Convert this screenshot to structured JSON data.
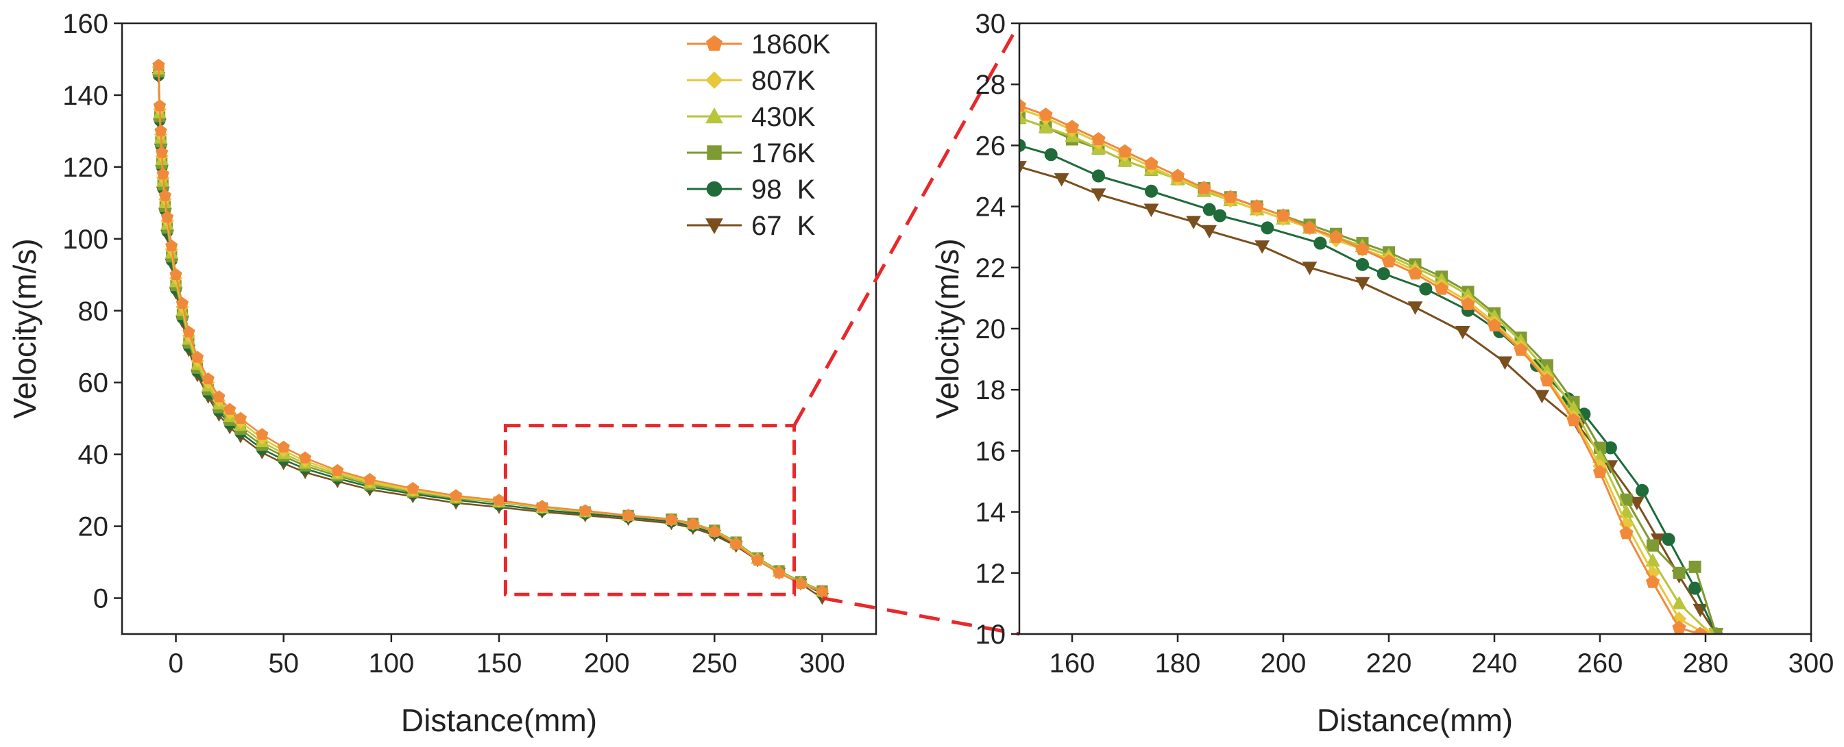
{
  "chart_data": [
    {
      "id": "full",
      "type": "line",
      "xlabel": "Distance(mm)",
      "ylabel": "Velocity(m/s)",
      "xlim": [
        -25,
        325
      ],
      "ylim": [
        -10,
        160
      ],
      "xticks": [
        0,
        50,
        100,
        150,
        200,
        250,
        300
      ],
      "yticks": [
        0,
        20,
        40,
        60,
        80,
        100,
        120,
        140,
        160
      ],
      "legend": {
        "placement": "top-right"
      },
      "zoom_box": {
        "x": [
          153,
          287
        ],
        "y": [
          1,
          48
        ]
      },
      "series": [
        {
          "name": "1860K",
          "color": "#f08a3a",
          "marker": "pentagon",
          "x": [
            -8,
            -7.5,
            -7,
            -6.5,
            -6,
            -5,
            -4,
            -2,
            0,
            3,
            6,
            10,
            15,
            20,
            25,
            30,
            40,
            50,
            60,
            75,
            90,
            110,
            130,
            150,
            170,
            190,
            210,
            230,
            240,
            250,
            260,
            270,
            280,
            290,
            300
          ],
          "y": [
            148.3,
            137,
            130,
            124,
            118,
            112,
            106,
            98,
            90,
            82,
            74,
            67,
            61,
            56,
            52.5,
            50,
            45.5,
            42,
            39,
            35.5,
            33,
            30.5,
            28.5,
            27.2,
            25.5,
            24.3,
            23,
            21.8,
            20.6,
            18.5,
            15,
            10.5,
            7,
            4,
            1.8
          ]
        },
        {
          "name": "807K",
          "color": "#e8c73a",
          "marker": "diamond",
          "x": [
            -8,
            -7.5,
            -7,
            -6.5,
            -6,
            -5,
            -4,
            -2,
            0,
            3,
            6,
            10,
            15,
            20,
            25,
            30,
            40,
            50,
            60,
            75,
            90,
            110,
            130,
            150,
            170,
            190,
            210,
            230,
            240,
            250,
            260,
            270,
            280,
            290,
            300
          ],
          "y": [
            147.8,
            136,
            129,
            123,
            117,
            111,
            105,
            97,
            89,
            81,
            73,
            66,
            60,
            55,
            51.5,
            49,
            44.5,
            41,
            38.2,
            35,
            32.5,
            30,
            28.2,
            27,
            25.3,
            24.2,
            22.9,
            21.8,
            20.6,
            18.6,
            15.2,
            10.8,
            7.2,
            4.2,
            1.8
          ]
        },
        {
          "name": "430K",
          "color": "#b8c43a",
          "marker": "triangle-up",
          "x": [
            -8,
            -7.5,
            -7,
            -6.5,
            -6,
            -5,
            -4,
            -2,
            0,
            3,
            6,
            10,
            15,
            20,
            25,
            30,
            40,
            50,
            60,
            75,
            90,
            110,
            130,
            150,
            170,
            190,
            210,
            230,
            240,
            250,
            260,
            270,
            280,
            290,
            300
          ],
          "y": [
            147.2,
            135,
            128,
            122,
            116,
            110,
            104,
            96,
            88,
            80,
            72,
            65,
            59,
            54,
            50.5,
            48,
            43.5,
            40.2,
            37.5,
            34.5,
            32,
            29.8,
            28,
            26.8,
            25.2,
            24.1,
            23,
            21.9,
            20.7,
            18.8,
            15.4,
            11,
            7.4,
            4.4,
            1.9
          ]
        },
        {
          "name": "176K",
          "color": "#7e9a32",
          "marker": "square",
          "x": [
            -8,
            -7.5,
            -7,
            -6.5,
            -6,
            -5,
            -4,
            -2,
            0,
            3,
            6,
            10,
            15,
            20,
            25,
            30,
            40,
            50,
            60,
            75,
            90,
            110,
            130,
            150,
            170,
            190,
            210,
            230,
            240,
            250,
            260,
            270,
            280,
            290,
            300
          ],
          "y": [
            146.5,
            134,
            127,
            121,
            115,
            109,
            103,
            95,
            87,
            79,
            71,
            64,
            58,
            53,
            49.5,
            47,
            42.5,
            39.5,
            36.8,
            34,
            31.5,
            29.5,
            27.8,
            26.7,
            25.1,
            24,
            23,
            22,
            20.8,
            18.9,
            15.6,
            11.2,
            7.6,
            4.6,
            2
          ]
        },
        {
          "name": "98  K",
          "color": "#1f6b3a",
          "marker": "circle",
          "x": [
            -8,
            -7.5,
            -7,
            -6.5,
            -6,
            -5,
            -4,
            -2,
            0,
            3,
            6,
            10,
            15,
            20,
            25,
            30,
            40,
            50,
            60,
            75,
            90,
            110,
            130,
            150,
            170,
            190,
            210,
            230,
            240,
            250,
            260,
            270,
            280,
            290,
            300
          ],
          "y": [
            145.5,
            133,
            126,
            120,
            114,
            108,
            102,
            94,
            86,
            78,
            70,
            63,
            57,
            52,
            48.5,
            46,
            41.5,
            38.5,
            36,
            33.3,
            31,
            29,
            27.3,
            26,
            24.5,
            23.5,
            22.5,
            21.3,
            20,
            18,
            15,
            11,
            7.4,
            4.4,
            1.2
          ]
        },
        {
          "name": "67  K",
          "color": "#7a4f1e",
          "marker": "triangle-down",
          "x": [
            -8,
            -7.5,
            -7,
            -6.5,
            -6,
            -5,
            -4,
            -2,
            0,
            3,
            6,
            10,
            15,
            20,
            25,
            30,
            40,
            50,
            60,
            75,
            90,
            110,
            130,
            150,
            170,
            190,
            210,
            230,
            240,
            250,
            260,
            270,
            280,
            290,
            300
          ],
          "y": [
            145,
            132,
            125,
            119,
            113,
            107,
            101,
            93,
            85,
            77,
            69,
            62,
            56,
            51,
            47.5,
            45,
            40.5,
            37.5,
            35,
            32.5,
            30.2,
            28.3,
            26.5,
            25.3,
            24,
            23,
            22,
            20.8,
            19.5,
            17.5,
            14.5,
            10.5,
            7,
            4,
            0
          ]
        }
      ]
    },
    {
      "id": "zoom",
      "type": "line",
      "xlabel": "Distance(mm)",
      "ylabel": "Velocity(m/s)",
      "xlim": [
        150,
        300
      ],
      "ylim": [
        10,
        30
      ],
      "xticks": [
        160,
        180,
        200,
        220,
        240,
        260,
        280,
        300
      ],
      "yticks": [
        10,
        12,
        14,
        16,
        18,
        20,
        22,
        24,
        26,
        28,
        30
      ],
      "series": [
        {
          "name": "1860K",
          "color": "#f08a3a",
          "marker": "pentagon",
          "x": [
            150,
            155,
            160,
            165,
            170,
            175,
            180,
            185,
            190,
            195,
            200,
            205,
            210,
            215,
            220,
            225,
            230,
            235,
            240,
            245,
            250,
            255,
            260,
            265,
            270,
            275,
            279
          ],
          "y": [
            27.3,
            27.0,
            26.6,
            26.2,
            25.8,
            25.4,
            25.0,
            24.6,
            24.3,
            24.0,
            23.7,
            23.3,
            23.0,
            22.6,
            22.2,
            21.8,
            21.3,
            20.8,
            20.1,
            19.3,
            18.3,
            17.0,
            15.3,
            13.3,
            11.7,
            10.2,
            10
          ]
        },
        {
          "name": "807K",
          "color": "#e8c73a",
          "marker": "diamond",
          "x": [
            150,
            155,
            160,
            165,
            170,
            175,
            180,
            185,
            190,
            195,
            200,
            205,
            210,
            215,
            220,
            225,
            230,
            235,
            240,
            245,
            250,
            255,
            260,
            265,
            270,
            275,
            280
          ],
          "y": [
            27.2,
            26.9,
            26.5,
            26.1,
            25.7,
            25.3,
            24.9,
            24.6,
            24.2,
            23.9,
            23.6,
            23.3,
            22.9,
            22.6,
            22.3,
            21.9,
            21.4,
            20.9,
            20.2,
            19.4,
            18.4,
            17.1,
            15.5,
            13.6,
            12.0,
            10.5,
            10
          ]
        },
        {
          "name": "430K",
          "color": "#b8c43a",
          "marker": "triangle-up",
          "x": [
            150,
            155,
            160,
            165,
            170,
            175,
            180,
            185,
            190,
            195,
            200,
            205,
            210,
            215,
            220,
            225,
            230,
            235,
            240,
            245,
            250,
            255,
            260,
            265,
            270,
            275,
            281
          ],
          "y": [
            26.9,
            26.6,
            26.3,
            25.9,
            25.5,
            25.2,
            24.9,
            24.5,
            24.2,
            23.9,
            23.6,
            23.3,
            23.0,
            22.7,
            22.4,
            22.0,
            21.6,
            21.1,
            20.4,
            19.6,
            18.6,
            17.4,
            15.8,
            14.0,
            12.4,
            11.0,
            10
          ]
        },
        {
          "name": "176K",
          "color": "#7e9a32",
          "marker": "square",
          "x": [
            150,
            155,
            160,
            165,
            170,
            175,
            180,
            185,
            190,
            195,
            200,
            205,
            210,
            215,
            220,
            225,
            230,
            235,
            240,
            245,
            250,
            255,
            260,
            265,
            270,
            275,
            278,
            282
          ],
          "y": [
            26.9,
            26.6,
            26.2,
            25.9,
            25.5,
            25.2,
            24.9,
            24.6,
            24.3,
            24.0,
            23.7,
            23.4,
            23.1,
            22.8,
            22.5,
            22.1,
            21.7,
            21.2,
            20.5,
            19.7,
            18.8,
            17.6,
            16.1,
            14.4,
            12.9,
            12.0,
            12.2,
            10
          ]
        },
        {
          "name": "98  K",
          "color": "#1f6b3a",
          "marker": "circle",
          "x": [
            150,
            156,
            165,
            175,
            186,
            188,
            197,
            207,
            215,
            219,
            227,
            235,
            241,
            248,
            254,
            257,
            262,
            268,
            273,
            278,
            282
          ],
          "y": [
            26.0,
            25.7,
            25.0,
            24.5,
            23.9,
            23.7,
            23.3,
            22.8,
            22.1,
            21.8,
            21.3,
            20.6,
            19.9,
            18.8,
            17.7,
            17.2,
            16.1,
            14.7,
            13.1,
            11.5,
            10
          ]
        },
        {
          "name": "67  K",
          "color": "#7a4f1e",
          "marker": "triangle-down",
          "x": [
            150,
            158,
            165,
            175,
            183,
            186,
            196,
            205,
            215,
            225,
            234,
            242,
            249,
            256,
            262,
            267,
            271,
            275,
            279,
            282
          ],
          "y": [
            25.3,
            24.9,
            24.4,
            23.9,
            23.5,
            23.2,
            22.7,
            22.0,
            21.5,
            20.7,
            19.9,
            18.9,
            17.8,
            16.8,
            15.5,
            14.3,
            13.1,
            11.9,
            10.8,
            10
          ]
        }
      ]
    }
  ]
}
